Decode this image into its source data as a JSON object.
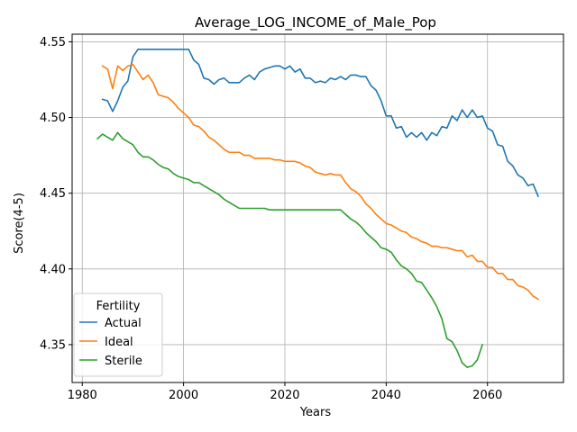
{
  "chart_data": {
    "type": "line",
    "title": "Average_LOG_INCOME_of_Male_Pop",
    "xlabel": "Years",
    "ylabel": "Score(4-5)",
    "xlim": [
      1978,
      2075
    ],
    "ylim": [
      4.325,
      4.555
    ],
    "xticks": [
      1980,
      2000,
      2020,
      2040,
      2060
    ],
    "xtick_labels": [
      "1980",
      "2000",
      "2020",
      "2040",
      "2060"
    ],
    "yticks": [
      4.35,
      4.4,
      4.45,
      4.5,
      4.55
    ],
    "ytick_labels": [
      "4.35",
      "4.40",
      "4.45",
      "4.50",
      "4.55"
    ],
    "grid": true,
    "legend": {
      "title": "Fertility",
      "position": "lower-left"
    },
    "series": [
      {
        "name": "Actual",
        "color": "#1f77b4",
        "x": [
          1984,
          1985,
          1986,
          1987,
          1988,
          1989,
          1990,
          1991,
          1992,
          1993,
          1994,
          1995,
          1996,
          1997,
          1998,
          1999,
          2000,
          2001,
          2002,
          2003,
          2004,
          2005,
          2006,
          2007,
          2008,
          2009,
          2010,
          2011,
          2012,
          2013,
          2014,
          2015,
          2016,
          2017,
          2018,
          2019,
          2020,
          2021,
          2022,
          2023,
          2024,
          2025,
          2026,
          2027,
          2028,
          2029,
          2030,
          2031,
          2032,
          2033,
          2034,
          2035,
          2036,
          2037,
          2038,
          2039,
          2040,
          2041,
          2042,
          2043,
          2044,
          2045,
          2046,
          2047,
          2048,
          2049,
          2050,
          2051,
          2052,
          2053,
          2054,
          2055,
          2056,
          2057,
          2058,
          2059,
          2060,
          2061,
          2062,
          2063,
          2064,
          2065,
          2066,
          2067,
          2068,
          2069,
          2070
        ],
        "values": [
          4.512,
          4.511,
          4.504,
          4.511,
          4.52,
          4.524,
          4.54,
          4.545,
          4.545,
          4.545,
          4.545,
          4.545,
          4.545,
          4.545,
          4.545,
          4.545,
          4.545,
          4.545,
          4.538,
          4.535,
          4.526,
          4.525,
          4.522,
          4.525,
          4.526,
          4.523,
          4.523,
          4.523,
          4.526,
          4.528,
          4.525,
          4.53,
          4.532,
          4.533,
          4.534,
          4.534,
          4.532,
          4.534,
          4.53,
          4.532,
          4.526,
          4.526,
          4.523,
          4.524,
          4.523,
          4.526,
          4.525,
          4.527,
          4.525,
          4.528,
          4.528,
          4.527,
          4.527,
          4.521,
          4.518,
          4.511,
          4.501,
          4.501,
          4.493,
          4.494,
          4.487,
          4.49,
          4.487,
          4.49,
          4.485,
          4.49,
          4.488,
          4.494,
          4.493,
          4.501,
          4.498,
          4.505,
          4.5,
          4.505,
          4.5,
          4.501,
          4.493,
          4.491,
          4.482,
          4.481,
          4.471,
          4.468,
          4.462,
          4.46,
          4.455,
          4.456,
          4.448
        ]
      },
      {
        "name": "Ideal",
        "color": "#ff7f0e",
        "x": [
          1984,
          1985,
          1986,
          1987,
          1988,
          1989,
          1990,
          1991,
          1992,
          1993,
          1994,
          1995,
          1996,
          1997,
          1998,
          1999,
          2000,
          2001,
          2002,
          2003,
          2004,
          2005,
          2006,
          2007,
          2008,
          2009,
          2010,
          2011,
          2012,
          2013,
          2014,
          2015,
          2016,
          2017,
          2018,
          2019,
          2020,
          2021,
          2022,
          2023,
          2024,
          2025,
          2026,
          2027,
          2028,
          2029,
          2030,
          2031,
          2032,
          2033,
          2034,
          2035,
          2036,
          2037,
          2038,
          2039,
          2040,
          2041,
          2042,
          2043,
          2044,
          2045,
          2046,
          2047,
          2048,
          2049,
          2050,
          2051,
          2052,
          2053,
          2054,
          2055,
          2056,
          2057,
          2058,
          2059,
          2060,
          2061,
          2062,
          2063,
          2064,
          2065,
          2066,
          2067,
          2068,
          2069,
          2070
        ],
        "values": [
          4.534,
          4.532,
          4.519,
          4.534,
          4.531,
          4.534,
          4.535,
          4.53,
          4.525,
          4.528,
          4.523,
          4.515,
          4.514,
          4.513,
          4.51,
          4.506,
          4.503,
          4.5,
          4.495,
          4.494,
          4.491,
          4.487,
          4.485,
          4.482,
          4.479,
          4.477,
          4.477,
          4.477,
          4.475,
          4.475,
          4.473,
          4.473,
          4.473,
          4.473,
          4.472,
          4.472,
          4.471,
          4.471,
          4.471,
          4.47,
          4.468,
          4.467,
          4.464,
          4.463,
          4.462,
          4.463,
          4.462,
          4.462,
          4.457,
          4.453,
          4.451,
          4.448,
          4.443,
          4.44,
          4.436,
          4.433,
          4.43,
          4.429,
          4.427,
          4.425,
          4.424,
          4.421,
          4.42,
          4.418,
          4.417,
          4.415,
          4.415,
          4.414,
          4.414,
          4.413,
          4.412,
          4.412,
          4.408,
          4.409,
          4.405,
          4.405,
          4.401,
          4.401,
          4.397,
          4.397,
          4.393,
          4.393,
          4.389,
          4.388,
          4.386,
          4.382,
          4.38
        ]
      },
      {
        "name": "Sterile",
        "color": "#2ca02c",
        "x": [
          1983,
          1984,
          1985,
          1986,
          1987,
          1988,
          1989,
          1990,
          1991,
          1992,
          1993,
          1994,
          1995,
          1996,
          1997,
          1998,
          1999,
          2000,
          2001,
          2002,
          2003,
          2004,
          2005,
          2006,
          2007,
          2008,
          2009,
          2010,
          2011,
          2012,
          2013,
          2014,
          2015,
          2016,
          2017,
          2018,
          2019,
          2020,
          2021,
          2022,
          2023,
          2024,
          2025,
          2026,
          2027,
          2028,
          2029,
          2030,
          2031,
          2032,
          2033,
          2034,
          2035,
          2036,
          2037,
          2038,
          2039,
          2040,
          2041,
          2042,
          2043,
          2044,
          2045,
          2046,
          2047,
          2048,
          2049,
          2050,
          2051,
          2052,
          2053,
          2054,
          2055,
          2056,
          2057,
          2058,
          2059
        ],
        "values": [
          4.486,
          4.489,
          4.487,
          4.485,
          4.49,
          4.486,
          4.484,
          4.482,
          4.477,
          4.474,
          4.474,
          4.472,
          4.469,
          4.467,
          4.466,
          4.463,
          4.461,
          4.46,
          4.459,
          4.457,
          4.457,
          4.455,
          4.453,
          4.451,
          4.449,
          4.446,
          4.444,
          4.442,
          4.44,
          4.44,
          4.44,
          4.44,
          4.44,
          4.44,
          4.439,
          4.439,
          4.439,
          4.439,
          4.439,
          4.439,
          4.439,
          4.439,
          4.439,
          4.439,
          4.439,
          4.439,
          4.439,
          4.439,
          4.439,
          4.436,
          4.433,
          4.431,
          4.428,
          4.424,
          4.421,
          4.418,
          4.414,
          4.413,
          4.411,
          4.406,
          4.402,
          4.4,
          4.397,
          4.392,
          4.391,
          4.386,
          4.381,
          4.375,
          4.367,
          4.354,
          4.352,
          4.346,
          4.338,
          4.335,
          4.336,
          4.34,
          4.35
        ]
      }
    ]
  }
}
